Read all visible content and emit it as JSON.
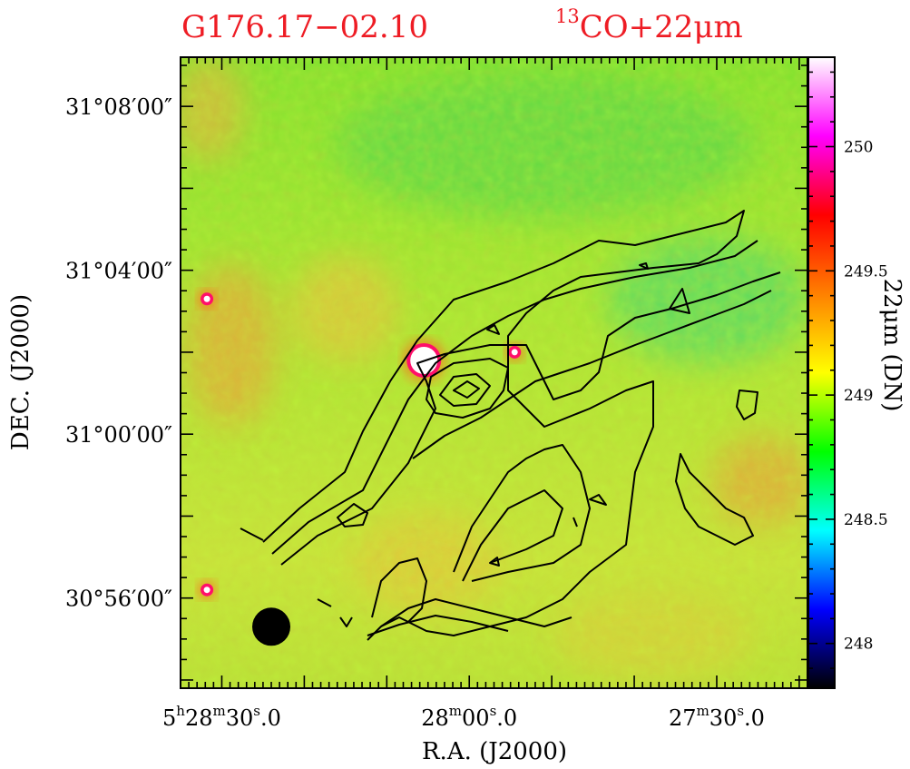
{
  "chart_data": {
    "type": "heatmap",
    "title_left": "G176.17−02.10",
    "title_right": {
      "superscript": "13",
      "text": "CO+22μm"
    },
    "xlabel": "R.A. (J2000)",
    "ylabel": "DEC. (J2000)",
    "colorbar_label": "22μm (DN)",
    "x_ticks": [
      {
        "hours": "5",
        "minutes": "28",
        "seconds": "30.0",
        "ra_seconds": 30
      },
      {
        "hours": "",
        "minutes": "28",
        "seconds": "00.0",
        "ra_seconds": 0
      },
      {
        "hours": "",
        "minutes": "27",
        "seconds": "30.0",
        "ra_seconds": -30
      }
    ],
    "y_ticks": [
      {
        "label": "31°08′00″",
        "arcmin": 8
      },
      {
        "label": "31°04′00″",
        "arcmin": 4
      },
      {
        "label": "31°00′00″",
        "arcmin": 0
      },
      {
        "label": "30°56′00″",
        "arcmin": -4
      }
    ],
    "x_range_ra_seconds_offset_from_5h28m": [
      35,
      -41
    ],
    "y_range_arcmin_offset_from_31deg": [
      -6.2,
      9.2
    ],
    "colorbar": {
      "range": [
        247.82,
        250.36
      ],
      "ticks": [
        248,
        248.5,
        249,
        249.5,
        250
      ],
      "tick_labels": [
        "248",
        "248.5",
        "249",
        "249.5",
        "250"
      ],
      "colors": [
        "#000000",
        "#0000ff",
        "#00ffff",
        "#00ff00",
        "#ffff00",
        "#ff8000",
        "#ff0000",
        "#ff00ff",
        "#ffffff"
      ]
    },
    "background_levels_DN": {
      "north": 248.9,
      "south": 249.1
    },
    "point_sources": [
      {
        "ra_seconds": 31.8,
        "dec_arcmin": 3.3,
        "peak_DN": 250.3
      },
      {
        "ra_seconds": 31.8,
        "dec_arcmin": -3.8,
        "peak_DN": 250.2
      },
      {
        "ra_seconds": 5.5,
        "dec_arcmin": 1.8,
        "peak_DN": 250.4
      },
      {
        "ra_seconds": -5.5,
        "dec_arcmin": 2.0,
        "peak_DN": 250.2
      }
    ],
    "beam": {
      "ra_seconds": 24,
      "dec_arcmin": -4.7
    },
    "contours_13CO": "black contours around a peak near RA 5h28m05s, DEC +31°01′, extending NE and S"
  }
}
